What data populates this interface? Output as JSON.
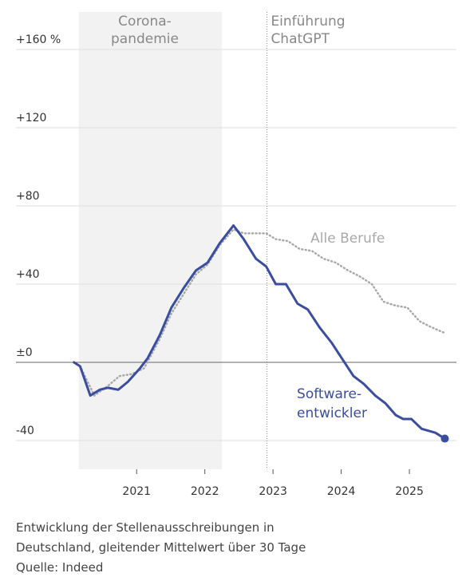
{
  "chart_data": {
    "type": "line",
    "xlim": [
      2019.23,
      2025.69
    ],
    "xticks": [
      2021,
      2022,
      2023,
      2024,
      2025
    ],
    "ylim": [
      -54.7,
      179.2
    ],
    "yticks": [
      {
        "value": 160,
        "label": "+160 %"
      },
      {
        "value": 120,
        "label": "+120"
      },
      {
        "value": 80,
        "label": "+80"
      },
      {
        "value": 40,
        "label": "+40"
      },
      {
        "value": 0,
        "label": "±0"
      },
      -40
    ],
    "grid": true,
    "shaded_span": [
      2020.15,
      2022.25
    ],
    "event_x": 2022.91,
    "series": [
      {
        "name": [
          "Software-",
          "entwickler"
        ],
        "color": "#3a4d9f",
        "style": "solid",
        "x": [
          2020.08,
          2020.17,
          2020.32,
          2020.46,
          2020.58,
          2020.73,
          2020.87,
          2021.05,
          2021.16,
          2021.34,
          2021.51,
          2021.69,
          2021.87,
          2022.04,
          2022.22,
          2022.42,
          2022.57,
          2022.75,
          2022.9,
          2023.04,
          2023.19,
          2023.36,
          2023.51,
          2023.68,
          2023.86,
          2024.01,
          2024.18,
          2024.33,
          2024.5,
          2024.65,
          2024.8,
          2024.91,
          2025.03,
          2025.18,
          2025.38,
          2025.52
        ],
        "values": [
          0,
          -2,
          -17,
          -14,
          -13,
          -14,
          -10,
          -3,
          2,
          14,
          28,
          38,
          47,
          51,
          61,
          70,
          63,
          53,
          49,
          40,
          40,
          30,
          27,
          18,
          10,
          2,
          -7,
          -11,
          -17,
          -21,
          -27,
          -29,
          -29,
          -34,
          -36,
          -39
        ]
      },
      {
        "name": [
          "Alle Berufe"
        ],
        "color": "#a9a9a9",
        "style": "dotted",
        "x": [
          2020.08,
          2020.17,
          2020.38,
          2020.58,
          2020.75,
          2020.93,
          2021.11,
          2021.34,
          2021.51,
          2021.69,
          2021.87,
          2022.04,
          2022.22,
          2022.42,
          2022.57,
          2022.75,
          2022.9,
          2023.04,
          2023.22,
          2023.39,
          2023.57,
          2023.74,
          2023.92,
          2024.1,
          2024.27,
          2024.45,
          2024.62,
          2024.8,
          2024.97,
          2025.15,
          2025.32,
          2025.52
        ],
        "values": [
          0,
          -2,
          -17,
          -12,
          -7,
          -6,
          -3,
          12,
          25,
          35,
          45,
          50,
          60,
          68,
          66,
          66,
          66,
          63,
          62,
          58,
          57,
          53,
          51,
          47,
          44,
          40,
          31,
          29,
          28,
          21,
          18,
          15
        ]
      }
    ],
    "annotations": [
      {
        "lines": [
          "Corona-",
          "pandemie"
        ]
      },
      {
        "lines": [
          "Einführung",
          "ChatGPT"
        ]
      }
    ],
    "caption": [
      "Entwicklung der Stellenausschreibungen in",
      "Deutschland, gleitender Mittelwert über 30 Tage",
      "Quelle: Indeed"
    ]
  }
}
